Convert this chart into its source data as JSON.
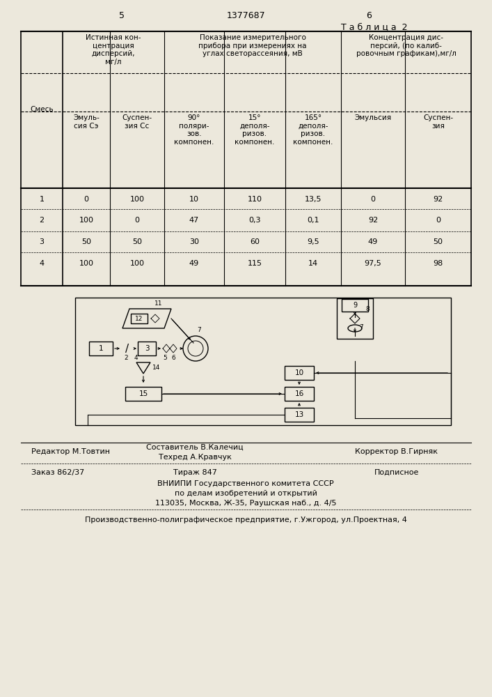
{
  "page_number_left": "5",
  "patent_number": "1377687",
  "page_number_right": "6",
  "table_title": "Т а б л и ц а  2",
  "bg_color": "#ece8dc",
  "table": {
    "data_rows": [
      [
        "1",
        "0",
        "100",
        "10",
        "110",
        "13,5",
        "0",
        "92"
      ],
      [
        "2",
        "100",
        "0",
        "47",
        "0,3",
        "0,1",
        "92",
        "0"
      ],
      [
        "3",
        "50",
        "50",
        "30",
        "60",
        "9,5",
        "49",
        "50"
      ],
      [
        "4",
        "100",
        "100",
        "49",
        "115",
        "14",
        "97,5",
        "98"
      ]
    ]
  },
  "footer": {
    "editor": "Редактор М.Товтин",
    "compiler": "Составитель В.Калечиц",
    "tech_editor": "Техред А.Кравчук",
    "corrector": "Корректор В.Гирняк",
    "order": "Заказ 862/37",
    "circulation": "Тираж 847",
    "subscription": "Подписное",
    "org_line1": "ВНИИПИ Государственного комитета СССР",
    "org_line2": "по делам изобретений и открытий",
    "org_line3": "113035, Москва, Ж-35, Раушская наб., д. 4/5",
    "bottom_line": "Производственно-полиграфическое предприятие, г.Ужгород, ул.Проектная, 4"
  }
}
